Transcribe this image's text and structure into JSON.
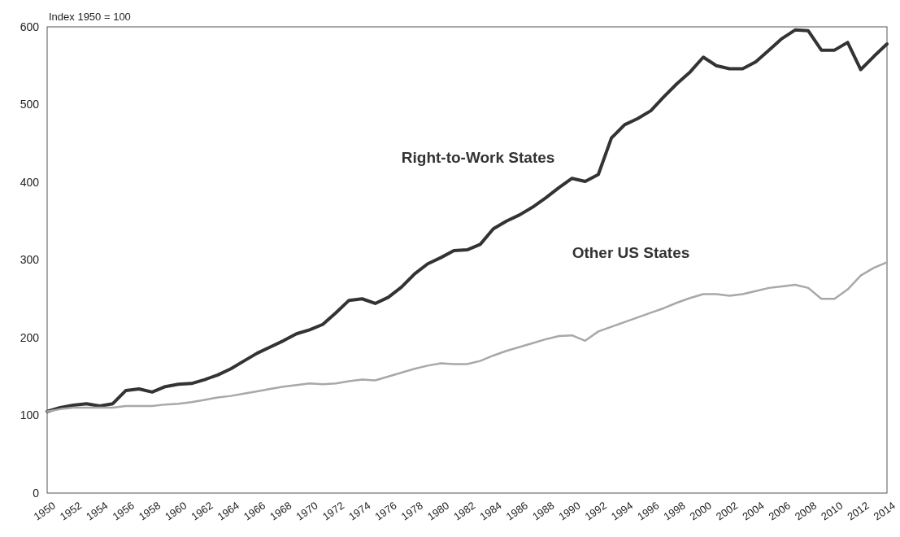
{
  "chart_data": {
    "type": "line",
    "ylabel": "Index 1950 = 100",
    "x": [
      1950,
      1951,
      1952,
      1953,
      1954,
      1955,
      1956,
      1957,
      1958,
      1959,
      1960,
      1961,
      1962,
      1963,
      1964,
      1965,
      1966,
      1967,
      1968,
      1969,
      1970,
      1971,
      1972,
      1973,
      1974,
      1975,
      1976,
      1977,
      1978,
      1979,
      1980,
      1981,
      1982,
      1983,
      1984,
      1985,
      1986,
      1987,
      1988,
      1989,
      1990,
      1991,
      1992,
      1993,
      1994,
      1995,
      1996,
      1997,
      1998,
      1999,
      2000,
      2001,
      2002,
      2003,
      2004,
      2005,
      2006,
      2007,
      2008,
      2009,
      2010,
      2011,
      2012,
      2013,
      2014
    ],
    "series": [
      {
        "name": "Right-to-Work States",
        "color": "#333333",
        "values": [
          105,
          110,
          113,
          115,
          112,
          115,
          132,
          134,
          130,
          137,
          140,
          141,
          146,
          152,
          160,
          170,
          180,
          188,
          196,
          205,
          210,
          217,
          232,
          248,
          250,
          244,
          252,
          265,
          282,
          295,
          303,
          312,
          313,
          320,
          340,
          350,
          358,
          368,
          380,
          393,
          405,
          401,
          410,
          457,
          474,
          482,
          492,
          510,
          527,
          542,
          561,
          550,
          546,
          546,
          555,
          570,
          585,
          596,
          595,
          570,
          570,
          580,
          545,
          562,
          578
        ]
      },
      {
        "name": "Other US States",
        "color": "#a8a8a8",
        "values": [
          105,
          108,
          110,
          110,
          110,
          110,
          112,
          112,
          112,
          114,
          115,
          117,
          120,
          123,
          125,
          128,
          131,
          134,
          137,
          139,
          141,
          140,
          141,
          144,
          146,
          145,
          150,
          155,
          160,
          164,
          167,
          166,
          166,
          170,
          177,
          183,
          188,
          193,
          198,
          202,
          203,
          196,
          208,
          214,
          220,
          226,
          232,
          238,
          245,
          251,
          256,
          256,
          254,
          256,
          260,
          264,
          266,
          268,
          264,
          250,
          250,
          262,
          280,
          290,
          297
        ]
      }
    ],
    "xlim": [
      1950,
      2014
    ],
    "xticks": [
      1950,
      1952,
      1954,
      1956,
      1958,
      1960,
      1962,
      1964,
      1966,
      1968,
      1970,
      1972,
      1974,
      1976,
      1978,
      1980,
      1982,
      1984,
      1986,
      1988,
      1990,
      1992,
      1994,
      1996,
      1998,
      2000,
      2002,
      2004,
      2006,
      2008,
      2010,
      2012,
      2014
    ],
    "ylim": [
      0,
      600
    ],
    "yticks": [
      0,
      100,
      200,
      300,
      400,
      500,
      600
    ],
    "grid": false,
    "legend": false
  }
}
